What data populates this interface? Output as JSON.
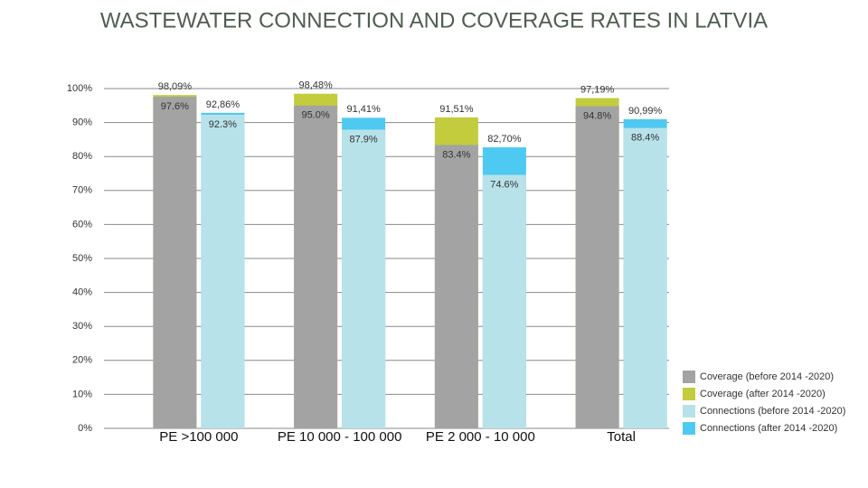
{
  "chart_data": {
    "type": "overlap-bar",
    "title": "WASTEWATER CONNECTION AND COVERAGE RATES IN LATVIA",
    "categories": [
      "PE >100 000",
      "PE 10 000 - 100 000",
      "PE 2 000 - 10 000",
      "Total"
    ],
    "series": [
      {
        "name": "Coverage (after 2014 -2020)",
        "color": "#c2cc3c",
        "group": 0,
        "values": [
          98.09,
          98.48,
          91.51,
          97.19
        ],
        "value_labels": [
          "98,09%",
          "98,48%",
          "91,51%",
          "97,19%"
        ]
      },
      {
        "name": "Coverage (before 2014 -2020)",
        "color": "#a3a3a3",
        "group": 0,
        "values": [
          97.6,
          95.0,
          83.4,
          94.8
        ],
        "value_labels": [
          "97.6%",
          "95.0%",
          "83.4%",
          "94.8%"
        ]
      },
      {
        "name": "Connections (after 2014 -2020)",
        "color": "#4ec9f2",
        "group": 1,
        "values": [
          92.86,
          91.41,
          82.7,
          90.99
        ],
        "value_labels": [
          "92,86%",
          "91,41%",
          "82,70%",
          "90,99%"
        ]
      },
      {
        "name": "Connections (before 2014 -2020)",
        "color": "#b8e2e9",
        "group": 1,
        "values": [
          92.3,
          87.9,
          74.6,
          88.4
        ],
        "value_labels": [
          "92.3%",
          "87.9%",
          "74.6%",
          "88.4%"
        ]
      }
    ],
    "legend_order": [
      1,
      0,
      3,
      2
    ],
    "ylim": [
      0,
      100
    ],
    "yticks": [
      {
        "value": 0,
        "label": "0%"
      },
      {
        "value": 10,
        "label": "10%"
      },
      {
        "value": 20,
        "label": "20%"
      },
      {
        "value": 30,
        "label": "30%"
      },
      {
        "value": 40,
        "label": "40%"
      },
      {
        "value": 50,
        "label": "50%"
      },
      {
        "value": 60,
        "label": "60%"
      },
      {
        "value": 70,
        "label": "70%"
      },
      {
        "value": 80,
        "label": "80%"
      },
      {
        "value": 90,
        "label": "90%"
      },
      {
        "value": 100,
        "label": "100%"
      }
    ],
    "grid": true,
    "legend": "right"
  }
}
